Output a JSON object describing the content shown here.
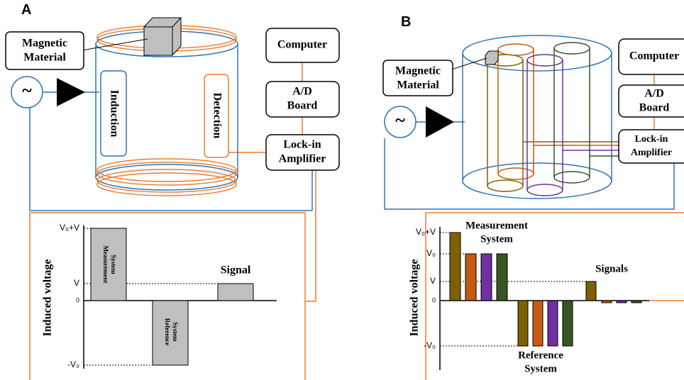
{
  "panel_a": {
    "label": "A",
    "magnetic_material": [
      "Magnetic",
      "Material"
    ],
    "induction": "Induction",
    "detection": "Detection",
    "computer": "Computer",
    "ad_board": [
      "A/D",
      "Board"
    ],
    "lock_in": [
      "Lock-in",
      "Amplifier"
    ],
    "graph": {
      "y_label": "Induced voltage",
      "ticks": [
        "V₀+V",
        "V",
        "0",
        "-V₀"
      ],
      "measurement": [
        "Measurement",
        "System"
      ],
      "reference": [
        "Reference",
        "System"
      ],
      "signal": "Signal"
    }
  },
  "panel_b": {
    "label": "B",
    "magnetic_material": [
      "Magnetic",
      "Material"
    ],
    "computer": "Computer",
    "ad_board": [
      "A/D",
      "Board"
    ],
    "lock_in": [
      "Lock-in",
      "Amplifier"
    ],
    "graph": {
      "y_label": "Induced voltage",
      "ticks": [
        "V₀+V",
        "V₀",
        "V",
        "0",
        "-V₀"
      ],
      "measurement": [
        "Measurement",
        "System"
      ],
      "reference": [
        "Reference",
        "System"
      ],
      "signals": "Signals"
    }
  }
}
